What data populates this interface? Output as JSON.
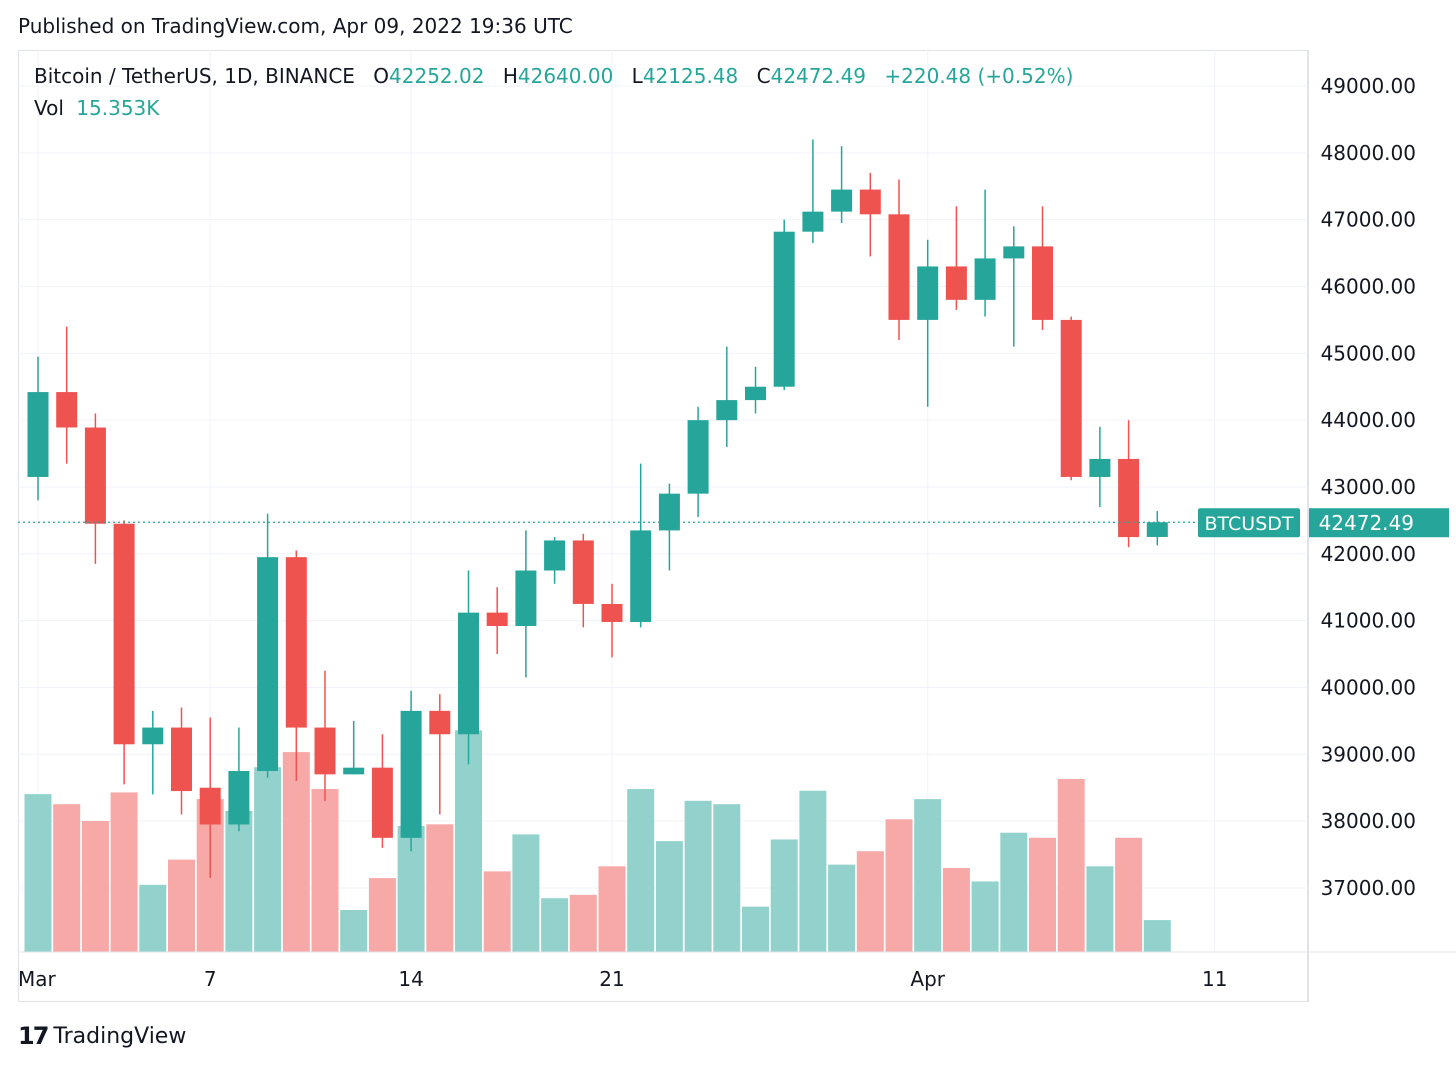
{
  "header": {
    "published": "Published on TradingView.com, Apr 09, 2022 19:36 UTC"
  },
  "legend": {
    "title": "Bitcoin / TetherUS, 1D, BINANCE",
    "open_label": "O",
    "open": "42252.02",
    "high_label": "H",
    "high": "42640.00",
    "low_label": "L",
    "low": "42125.48",
    "close_label": "C",
    "close": "42472.49",
    "change": "+220.48 (+0.52%)",
    "vol_label": "Vol",
    "vol": "15.353K"
  },
  "price_tag": {
    "symbol": "BTCUSDT",
    "price": "42472.49"
  },
  "brand": {
    "logo": "17",
    "name": "TradingView"
  },
  "colors": {
    "up": "#26a69a",
    "down": "#ef5350",
    "up_vol": "#93d2cc",
    "down_vol": "#f7a9a7",
    "grid": "#f0f3fa",
    "axis_text": "#131722"
  },
  "chart_data": {
    "type": "candlestick",
    "title": "Bitcoin / TetherUS, 1D, BINANCE",
    "ylim": [
      36000,
      49800
    ],
    "y_ticks": [
      "49000.00",
      "48000.00",
      "47000.00",
      "46000.00",
      "45000.00",
      "44000.00",
      "43000.00",
      "42000.00",
      "41000.00",
      "40000.00",
      "39000.00",
      "38000.00",
      "37000.00"
    ],
    "x_tick_labels": [
      {
        "index": 0,
        "label": "Mar"
      },
      {
        "index": 6,
        "label": "7"
      },
      {
        "index": 13,
        "label": "14"
      },
      {
        "index": 20,
        "label": "21"
      },
      {
        "index": 31,
        "label": "Apr"
      },
      {
        "index": 41,
        "label": "11"
      }
    ],
    "current_price": 42472.49,
    "candles": [
      {
        "o": 43150,
        "h": 44950,
        "l": 42800,
        "c": 44420,
        "v": 0.94
      },
      {
        "o": 44420,
        "h": 45400,
        "l": 43350,
        "c": 43890,
        "v": 0.88
      },
      {
        "o": 43890,
        "h": 44100,
        "l": 41850,
        "c": 42450,
        "v": 0.78
      },
      {
        "o": 42450,
        "h": 42500,
        "l": 38550,
        "c": 39150,
        "v": 0.95
      },
      {
        "o": 39150,
        "h": 39650,
        "l": 38400,
        "c": 39400,
        "v": 0.4
      },
      {
        "o": 39400,
        "h": 39700,
        "l": 38100,
        "c": 38450,
        "v": 0.55
      },
      {
        "o": 38500,
        "h": 39550,
        "l": 37150,
        "c": 37950,
        "v": 0.91
      },
      {
        "o": 37950,
        "h": 39400,
        "l": 37850,
        "c": 38750,
        "v": 0.84
      },
      {
        "o": 38750,
        "h": 42600,
        "l": 38650,
        "c": 41950,
        "v": 1.1
      },
      {
        "o": 41950,
        "h": 42050,
        "l": 38600,
        "c": 39400,
        "v": 1.19
      },
      {
        "o": 39400,
        "h": 40250,
        "l": 38300,
        "c": 38700,
        "v": 0.97
      },
      {
        "o": 38700,
        "h": 39500,
        "l": 38700,
        "c": 38800,
        "v": 0.25
      },
      {
        "o": 38800,
        "h": 39300,
        "l": 37600,
        "c": 37750,
        "v": 0.44
      },
      {
        "o": 37750,
        "h": 39950,
        "l": 37550,
        "c": 39650,
        "v": 0.75
      },
      {
        "o": 39650,
        "h": 39900,
        "l": 38100,
        "c": 39300,
        "v": 0.76
      },
      {
        "o": 39300,
        "h": 41750,
        "l": 38850,
        "c": 41120,
        "v": 1.32
      },
      {
        "o": 41120,
        "h": 41500,
        "l": 40500,
        "c": 40920,
        "v": 0.48
      },
      {
        "o": 40920,
        "h": 42350,
        "l": 40150,
        "c": 41750,
        "v": 0.7
      },
      {
        "o": 41750,
        "h": 42250,
        "l": 41550,
        "c": 42200,
        "v": 0.32
      },
      {
        "o": 42200,
        "h": 42300,
        "l": 40900,
        "c": 41250,
        "v": 0.34
      },
      {
        "o": 41250,
        "h": 41550,
        "l": 40450,
        "c": 40980,
        "v": 0.51
      },
      {
        "o": 40980,
        "h": 43350,
        "l": 40900,
        "c": 42350,
        "v": 0.97
      },
      {
        "o": 42350,
        "h": 43050,
        "l": 41750,
        "c": 42900,
        "v": 0.66
      },
      {
        "o": 42900,
        "h": 44200,
        "l": 42550,
        "c": 44000,
        "v": 0.9
      },
      {
        "o": 44000,
        "h": 45100,
        "l": 43600,
        "c": 44300,
        "v": 0.88
      },
      {
        "o": 44300,
        "h": 44800,
        "l": 44100,
        "c": 44500,
        "v": 0.27
      },
      {
        "o": 44500,
        "h": 47000,
        "l": 44450,
        "c": 46820,
        "v": 0.67
      },
      {
        "o": 46820,
        "h": 48200,
        "l": 46650,
        "c": 47120,
        "v": 0.96
      },
      {
        "o": 47120,
        "h": 48100,
        "l": 46950,
        "c": 47450,
        "v": 0.52
      },
      {
        "o": 47450,
        "h": 47700,
        "l": 46450,
        "c": 47080,
        "v": 0.6
      },
      {
        "o": 47080,
        "h": 47600,
        "l": 45200,
        "c": 45500,
        "v": 0.79
      },
      {
        "o": 45500,
        "h": 46700,
        "l": 44200,
        "c": 46300,
        "v": 0.91
      },
      {
        "o": 46300,
        "h": 47200,
        "l": 45650,
        "c": 45800,
        "v": 0.5
      },
      {
        "o": 45800,
        "h": 47450,
        "l": 45550,
        "c": 46420,
        "v": 0.42
      },
      {
        "o": 46420,
        "h": 46900,
        "l": 45100,
        "c": 46600,
        "v": 0.71
      },
      {
        "o": 46600,
        "h": 47200,
        "l": 45350,
        "c": 45500,
        "v": 0.68
      },
      {
        "o": 45500,
        "h": 45550,
        "l": 43100,
        "c": 43150,
        "v": 1.03
      },
      {
        "o": 43150,
        "h": 43900,
        "l": 42700,
        "c": 43420,
        "v": 0.51
      },
      {
        "o": 43420,
        "h": 44000,
        "l": 42100,
        "c": 42250,
        "v": 0.68
      },
      {
        "o": 42252.02,
        "h": 42640,
        "l": 42125.48,
        "c": 42472.49,
        "v": 0.19
      }
    ]
  }
}
